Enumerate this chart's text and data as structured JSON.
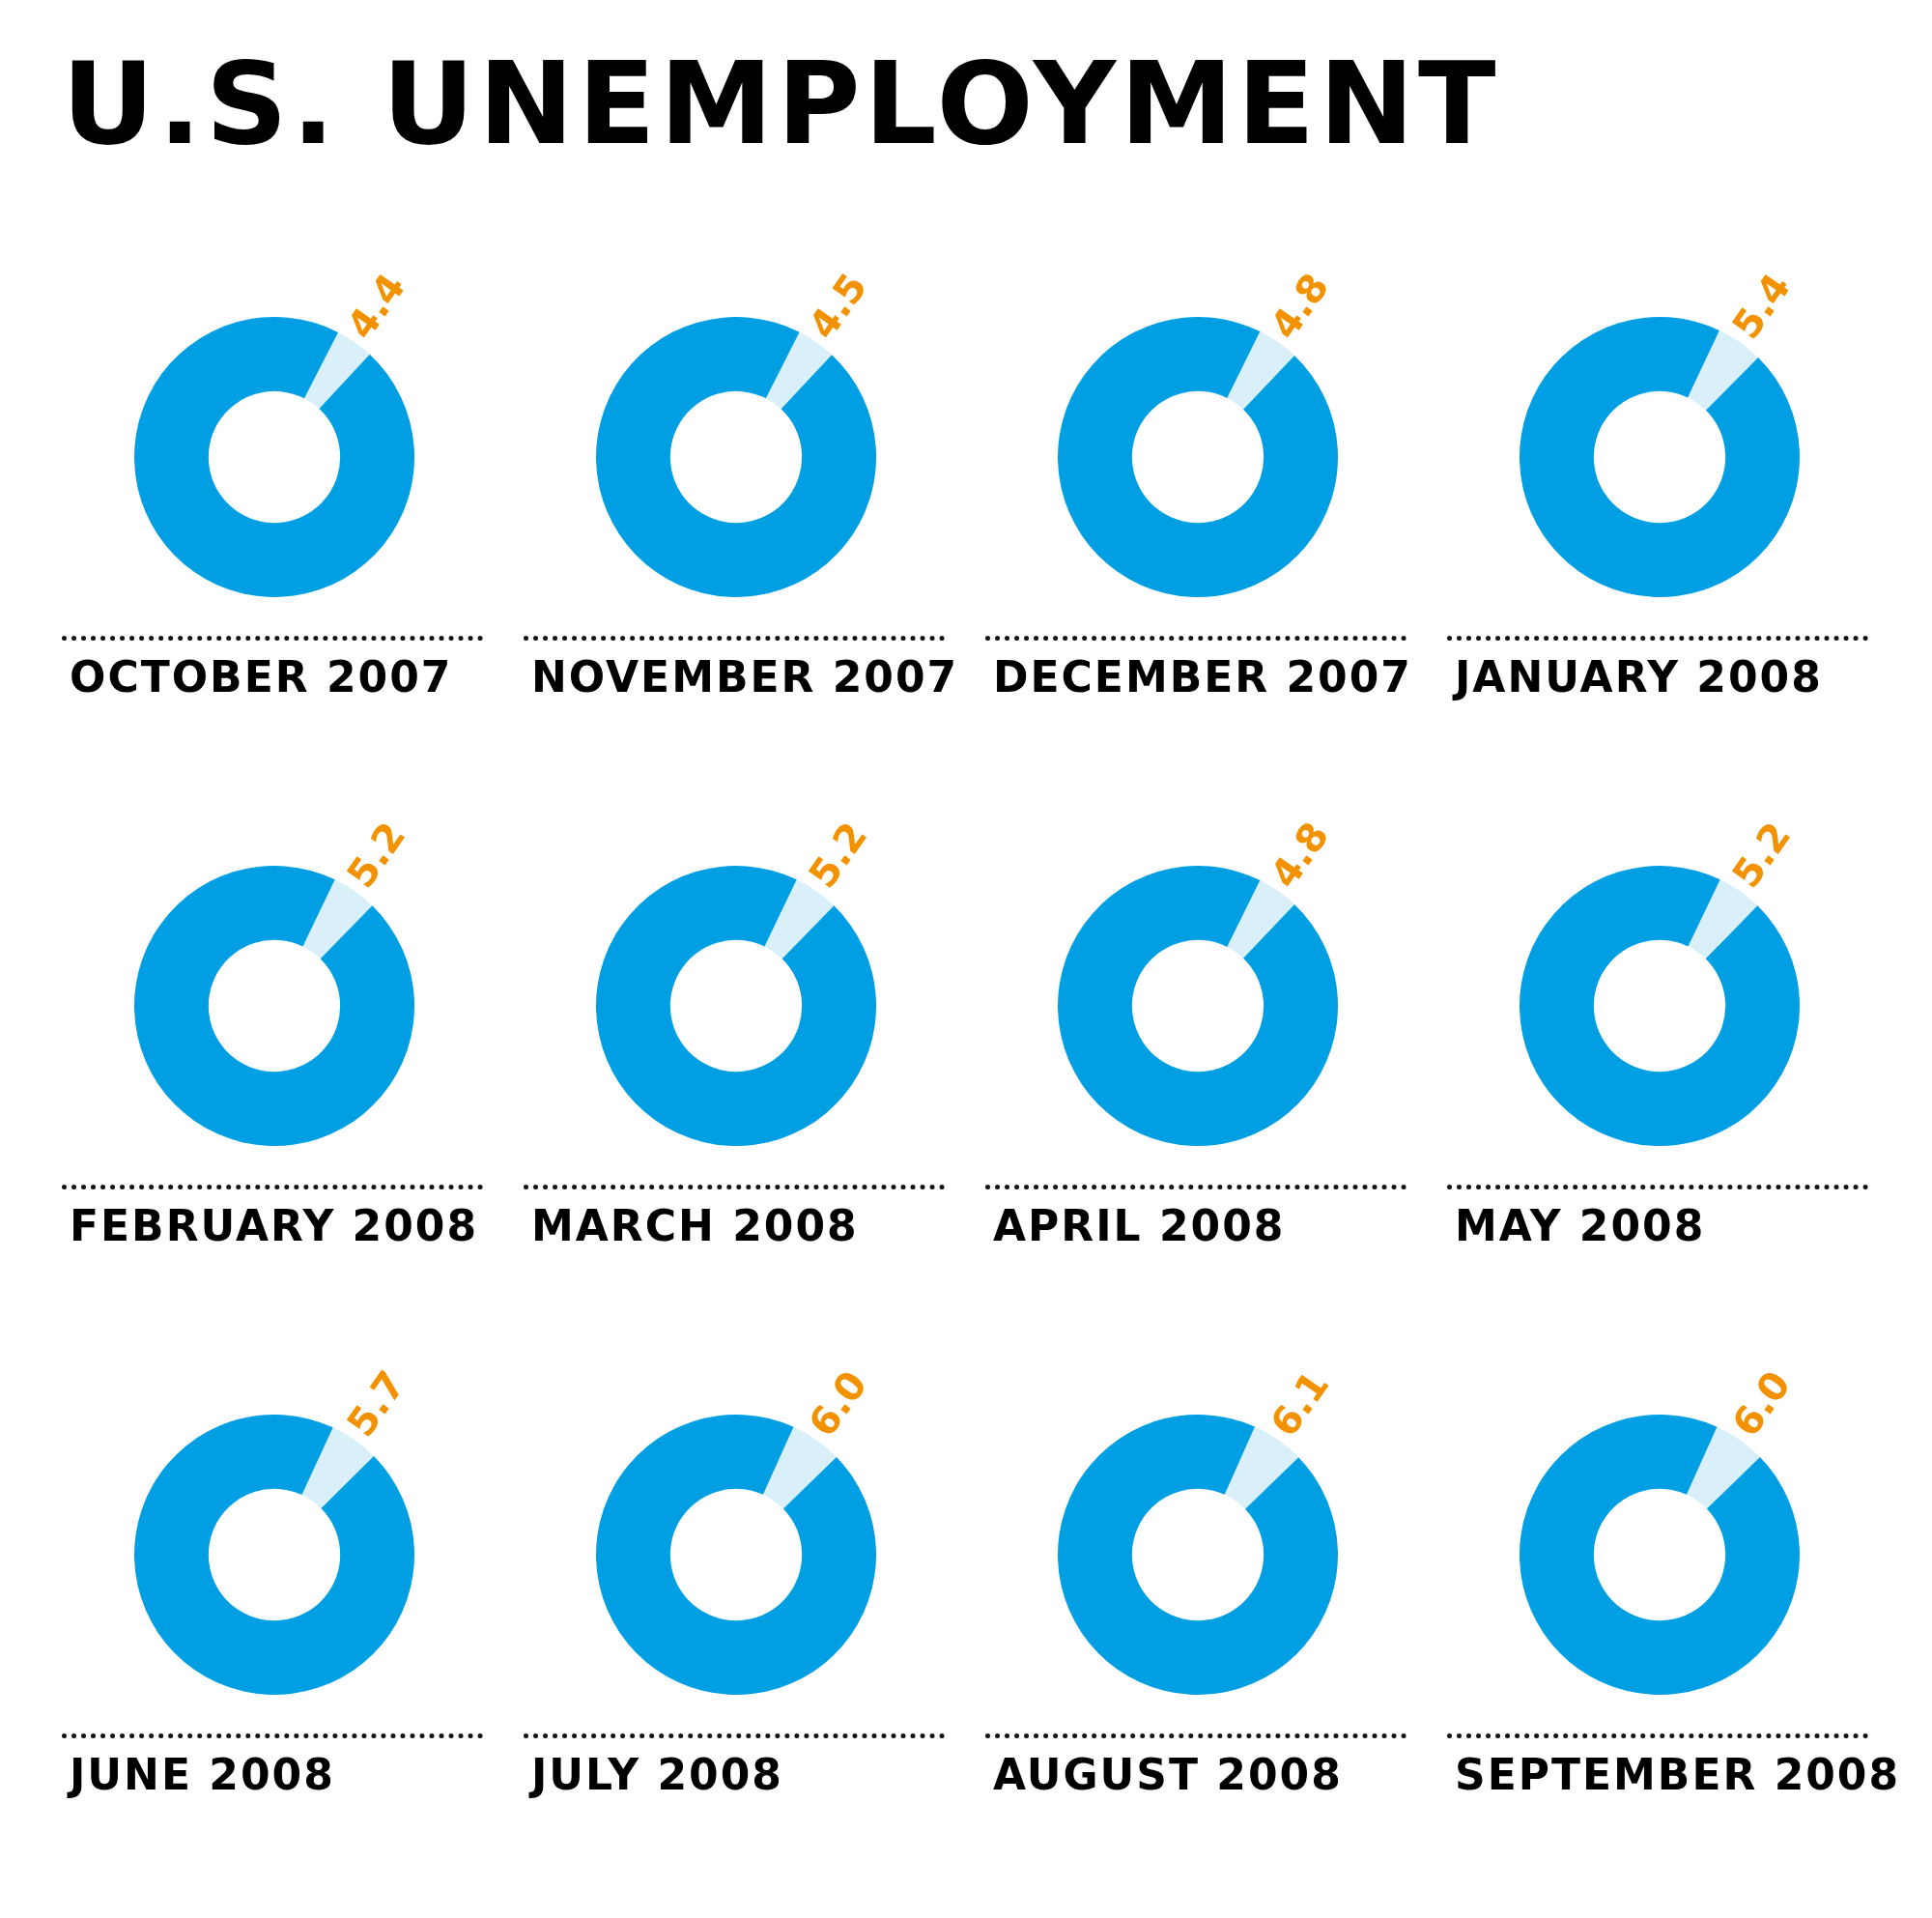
{
  "chart_data": [
    {
      "type": "donut",
      "title": "U.S. UNEMPLOYMENT",
      "xlabel": "OCTOBER 2007",
      "categories": [
        null,
        null
      ],
      "values": [
        4.4,
        95.6
      ],
      "colors": [
        "#d9eff9",
        "#009fe3"
      ],
      "value_labels": [
        "4.4",
        null
      ]
    },
    {
      "type": "donut",
      "xlabel": "NOVEMBER 2007",
      "categories": [
        null,
        null
      ],
      "values": [
        4.5,
        95.5
      ],
      "colors": [
        "#d9eff9",
        "#009fe3"
      ],
      "value_labels": [
        "4.5",
        null
      ]
    },
    {
      "type": "donut",
      "xlabel": "DECEMBER 2007",
      "categories": [
        null,
        null
      ],
      "values": [
        4.8,
        95.2
      ],
      "colors": [
        "#d9eff9",
        "#009fe3"
      ],
      "value_labels": [
        "4.8",
        null
      ]
    },
    {
      "type": "donut",
      "xlabel": "JANUARY 2008",
      "categories": [
        null,
        null
      ],
      "values": [
        5.4,
        94.6
      ],
      "colors": [
        "#d9eff9",
        "#009fe3"
      ],
      "value_labels": [
        "5.4",
        null
      ]
    },
    {
      "type": "donut",
      "xlabel": "FEBRUARY 2008",
      "categories": [
        null,
        null
      ],
      "values": [
        5.2,
        94.8
      ],
      "colors": [
        "#d9eff9",
        "#009fe3"
      ],
      "value_labels": [
        "5.2",
        null
      ]
    },
    {
      "type": "donut",
      "xlabel": "MARCH 2008",
      "categories": [
        null,
        null
      ],
      "values": [
        5.2,
        94.8
      ],
      "colors": [
        "#d9eff9",
        "#009fe3"
      ],
      "value_labels": [
        "5.2",
        null
      ]
    },
    {
      "type": "donut",
      "xlabel": "APRIL 2008",
      "categories": [
        null,
        null
      ],
      "values": [
        4.8,
        95.2
      ],
      "colors": [
        "#d9eff9",
        "#009fe3"
      ],
      "value_labels": [
        "4.8",
        null
      ]
    },
    {
      "type": "donut",
      "xlabel": "MAY 2008",
      "categories": [
        null,
        null
      ],
      "values": [
        5.2,
        94.8
      ],
      "colors": [
        "#d9eff9",
        "#009fe3"
      ],
      "value_labels": [
        "5.2",
        null
      ]
    },
    {
      "type": "donut",
      "xlabel": "JUNE 2008",
      "categories": [
        null,
        null
      ],
      "values": [
        5.7,
        94.3
      ],
      "colors": [
        "#d9eff9",
        "#009fe3"
      ],
      "value_labels": [
        "5.7",
        null
      ]
    },
    {
      "type": "donut",
      "xlabel": "JULY 2008",
      "categories": [
        null,
        null
      ],
      "values": [
        6.0,
        94.0
      ],
      "colors": [
        "#d9eff9",
        "#009fe3"
      ],
      "value_labels": [
        "6.0",
        null
      ]
    },
    {
      "type": "donut",
      "xlabel": "AUGUST 2008",
      "categories": [
        null,
        null
      ],
      "values": [
        6.1,
        93.9
      ],
      "colors": [
        "#d9eff9",
        "#009fe3"
      ],
      "value_labels": [
        "6.1",
        null
      ]
    },
    {
      "type": "donut",
      "xlabel": "SEPTEMBER 2008",
      "categories": [
        null,
        null
      ],
      "values": [
        6.0,
        94.0
      ],
      "colors": [
        "#d9eff9",
        "#009fe3"
      ],
      "value_labels": [
        "6.0",
        null
      ]
    }
  ]
}
